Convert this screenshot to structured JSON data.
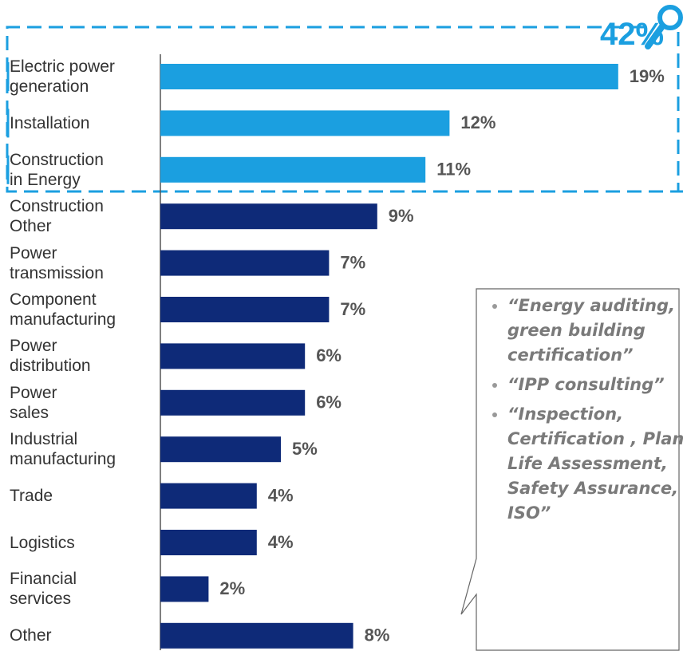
{
  "chart_data": {
    "type": "bar",
    "orientation": "horizontal",
    "categories": [
      "Electric power\ngeneration",
      "Installation",
      "Construction\nin Energy",
      "Construction\nOther",
      "Power\ntransmission",
      "Component\nmanufacturing",
      "Power\ndistribution",
      "Power\nsales",
      "Industrial\nmanufacturing",
      "Trade",
      "Logistics",
      "Financial\nservices",
      "Other"
    ],
    "values": [
      19,
      12,
      11,
      9,
      7,
      7,
      6,
      6,
      5,
      4,
      4,
      2,
      8
    ],
    "value_labels": [
      "19%",
      "12%",
      "11%",
      "9%",
      "7%",
      "7%",
      "6%",
      "6%",
      "5%",
      "4%",
      "4%",
      "2%",
      "8%"
    ],
    "colors": [
      "#1b9fe0",
      "#1b9fe0",
      "#1b9fe0",
      "#0e2a78",
      "#0e2a78",
      "#0e2a78",
      "#0e2a78",
      "#0e2a78",
      "#0e2a78",
      "#0e2a78",
      "#0e2a78",
      "#0e2a78",
      "#0e2a78"
    ],
    "xlim": [
      0,
      20
    ],
    "annotation": "42%",
    "callout": [
      "“Energy auditing, green building certification”",
      "“IPP consulting”",
      "“Inspection, Certification , Plant Life Assessment, Safety Assurance, ISO”"
    ]
  }
}
